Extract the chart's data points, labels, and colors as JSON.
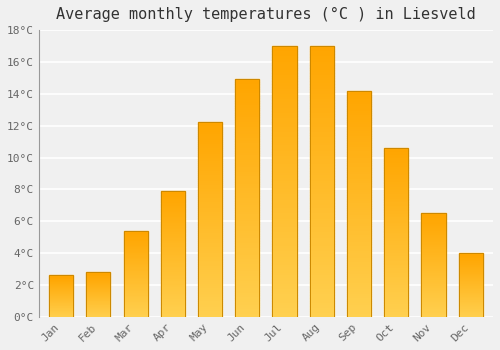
{
  "title": "Average monthly temperatures (°C ) in Liesveld",
  "months": [
    "Jan",
    "Feb",
    "Mar",
    "Apr",
    "May",
    "Jun",
    "Jul",
    "Aug",
    "Sep",
    "Oct",
    "Nov",
    "Dec"
  ],
  "values": [
    2.6,
    2.8,
    5.4,
    7.9,
    12.2,
    14.9,
    17.0,
    17.0,
    14.2,
    10.6,
    6.5,
    4.0
  ],
  "bar_color_top": "#FFA500",
  "bar_color_bottom": "#FFD050",
  "bar_edge_color": "#CC8800",
  "background_color": "#f0f0f0",
  "grid_color": "#ffffff",
  "ylim": [
    0,
    18
  ],
  "ytick_step": 2,
  "title_fontsize": 11,
  "tick_fontsize": 8,
  "bar_width": 0.65,
  "figsize": [
    5.0,
    3.5
  ],
  "dpi": 100
}
